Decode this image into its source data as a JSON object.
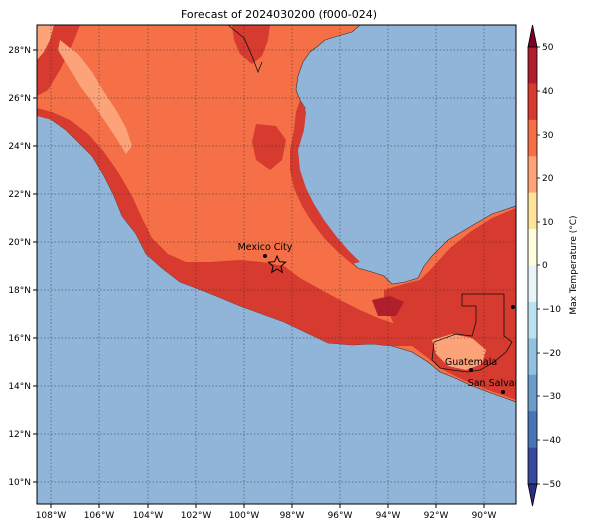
{
  "title": "Forecast of 2024030200 (f000-024)",
  "colors": {
    "ocean": "#91b4d9",
    "band_20_30": "#f57047",
    "band_30_40": "#d73a2e",
    "band_10_20": "#fca37a",
    "band_40_50": "#b11e2c"
  },
  "map": {
    "lon_range": [
      -108.5,
      -88.8
    ],
    "lat_range": [
      9.0,
      29.0
    ],
    "x_ticks": [
      "108°W",
      "106°W",
      "104°W",
      "102°W",
      "100°W",
      "98°W",
      "96°W",
      "94°W",
      "92°W",
      "90°W"
    ],
    "y_ticks": [
      "10°N",
      "12°N",
      "14°N",
      "16°N",
      "18°N",
      "20°N",
      "22°N",
      "24°N",
      "26°N",
      "28°N"
    ]
  },
  "cities": [
    {
      "name": "Mexico City",
      "lon": -99.1,
      "lat": 19.4
    },
    {
      "name": "Guatemala",
      "lon": -90.5,
      "lat": 14.6
    },
    {
      "name": "San Salvador",
      "lon": -89.2,
      "lat": 13.7
    }
  ],
  "star_marker": {
    "lon": -98.6,
    "lat": 19.0
  },
  "colorbar": {
    "label": "Max Temperature (°C)",
    "ticks": [
      "50",
      "40",
      "30",
      "20",
      "10",
      "0",
      "−10",
      "−20",
      "−30",
      "−40",
      "−50"
    ],
    "colors": [
      "#800026",
      "#b11e2c",
      "#d73a2e",
      "#f57047",
      "#fca37a",
      "#fee49a",
      "#ffffe0",
      "#e9f6f8",
      "#bde1ee",
      "#91c1df",
      "#6a9bc9",
      "#4575b4",
      "#344a9d",
      "#2a2c88"
    ]
  }
}
